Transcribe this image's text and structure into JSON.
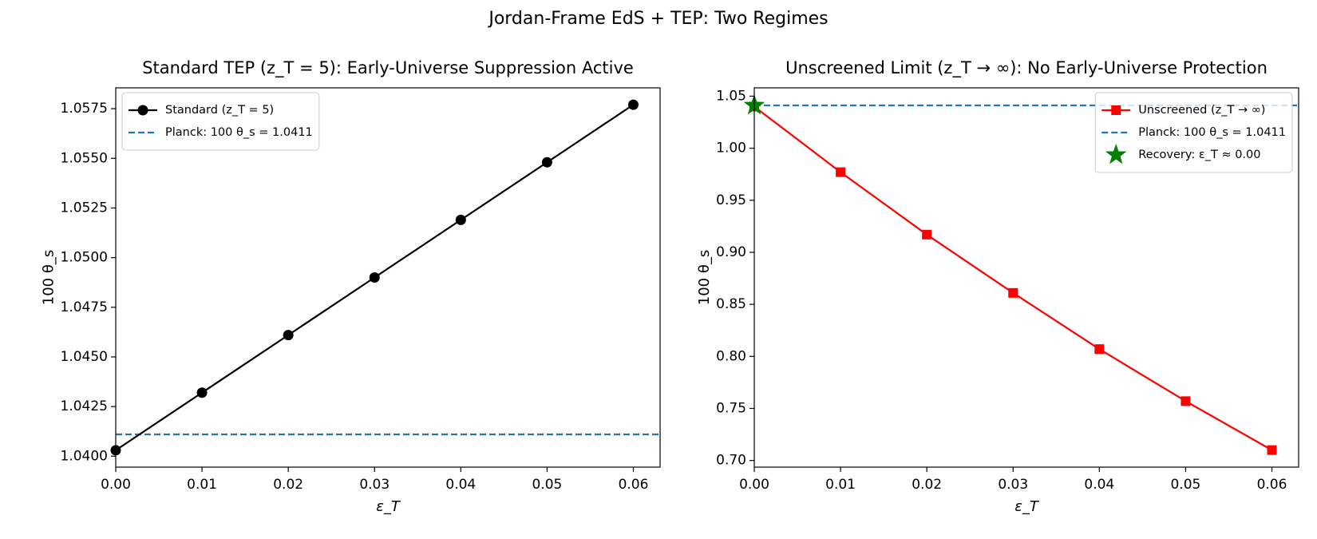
{
  "figure_title": "Jordan-Frame EdS + TEP: Two Regimes",
  "chart_data": [
    {
      "type": "line",
      "title": "Standard TEP (z_T = 5): Early-Universe Suppression Active",
      "xlabel": "ε_T",
      "ylabel": "100 θ_s",
      "x": [
        0,
        0.01,
        0.02,
        0.03,
        0.04,
        0.05,
        0.06
      ],
      "series": [
        {
          "name": "Standard (z_T = 5)",
          "color": "#000000",
          "marker": "circle",
          "values": [
            1.0403,
            1.0432,
            1.0461,
            1.049,
            1.0519,
            1.0548,
            1.0577
          ]
        }
      ],
      "reference_lines": [
        {
          "name": "Planck: 100 θ_s = 1.0411",
          "value": 1.0411,
          "color": "#1f77b4",
          "style": "dashed"
        }
      ],
      "points": [],
      "xlim": [
        0,
        0.0631
      ],
      "xticks": [
        {
          "value": 0,
          "label": "0.00"
        },
        0.01,
        0.02,
        0.03,
        0.04,
        0.05,
        0.06
      ],
      "ylim": [
        1.03945,
        1.05855
      ],
      "yticks": [
        {
          "value": 1.04,
          "label": "1.0400"
        },
        1.0425,
        {
          "value": 1.045,
          "label": "1.0450"
        },
        1.0475,
        {
          "value": 1.05,
          "label": "1.0500"
        },
        1.0525,
        {
          "value": 1.055,
          "label": "1.0550"
        },
        1.0575
      ],
      "grid": false,
      "legend": "upper left"
    },
    {
      "type": "line",
      "title": "Unscreened Limit (z_T → ∞): No Early-Universe Protection",
      "xlabel": "ε_T",
      "ylabel": "100 θ_s",
      "x": [
        0,
        0.01,
        0.02,
        0.03,
        0.04,
        0.05,
        0.06
      ],
      "series": [
        {
          "name": "Unscreened (z_T → ∞)",
          "color": "#ff0000",
          "marker": "square",
          "values": [
            1.04,
            0.977,
            0.917,
            0.861,
            0.807,
            0.757,
            0.71
          ]
        }
      ],
      "reference_lines": [
        {
          "name": "Planck: 100 θ_s = 1.0411",
          "value": 1.0411,
          "color": "#1f77b4",
          "style": "dashed"
        }
      ],
      "points": [
        {
          "name": "Recovery: ε_T ≈ 0.00",
          "x": 0,
          "y": 1.0411,
          "color": "#008000",
          "marker": "star"
        }
      ],
      "xlim": [
        0,
        0.0631
      ],
      "xticks": [
        {
          "value": 0,
          "label": "0.00"
        },
        0.01,
        0.02,
        0.03,
        0.04,
        0.05,
        0.06
      ],
      "ylim": [
        0.6936,
        1.058
      ],
      "yticks": [
        {
          "value": 0.7,
          "label": "0.70"
        },
        0.75,
        {
          "value": 0.8,
          "label": "0.80"
        },
        0.85,
        {
          "value": 0.9,
          "label": "0.90"
        },
        0.95,
        {
          "value": 1,
          "label": "1.00"
        },
        1.05
      ],
      "grid": false,
      "legend": "upper right"
    }
  ]
}
